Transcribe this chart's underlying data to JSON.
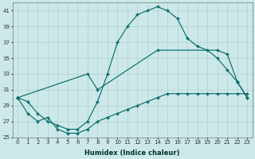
{
  "title": "",
  "xlabel": "Humidex (Indice chaleur)",
  "ylabel": "",
  "bg_color": "#cce8e8",
  "line_color": "#006666",
  "grid_color": "#b0d0d0",
  "ylim": [
    25,
    42
  ],
  "xlim": [
    -0.5,
    23.5
  ],
  "yticks": [
    25,
    27,
    29,
    31,
    33,
    35,
    37,
    39,
    41
  ],
  "xticks": [
    0,
    1,
    2,
    3,
    4,
    5,
    6,
    7,
    8,
    9,
    10,
    11,
    12,
    13,
    14,
    15,
    16,
    17,
    18,
    19,
    20,
    21,
    22,
    23
  ],
  "line1_x": [
    0,
    1,
    2,
    3,
    4,
    5,
    6,
    7,
    8,
    9,
    10,
    11,
    12,
    13,
    14,
    15,
    16,
    17,
    18,
    19,
    20,
    21,
    22,
    23
  ],
  "line1_y": [
    30,
    29.5,
    28,
    27,
    26.5,
    26,
    26,
    27,
    29.5,
    33,
    37,
    39,
    40.5,
    41,
    41.5,
    41,
    40,
    37.5,
    36.5,
    36,
    35,
    33.5,
    32,
    30
  ],
  "line2_x": [
    0,
    7,
    8,
    14,
    20,
    21,
    22,
    23
  ],
  "line2_y": [
    30,
    33,
    31,
    36,
    36,
    35.5,
    32,
    30
  ],
  "line3_x": [
    0,
    1,
    2,
    3,
    4,
    5,
    6,
    7,
    8,
    9,
    10,
    11,
    12,
    13,
    14,
    15,
    16,
    17,
    18,
    19,
    20,
    21,
    22,
    23
  ],
  "line3_y": [
    30,
    28,
    27,
    27.5,
    26,
    25.5,
    25.5,
    26,
    27,
    27.5,
    28,
    28.5,
    29,
    29.5,
    30,
    30.5,
    30.5,
    30.5,
    30.5,
    30.5,
    30.5,
    30.5,
    30.5,
    30.5
  ]
}
